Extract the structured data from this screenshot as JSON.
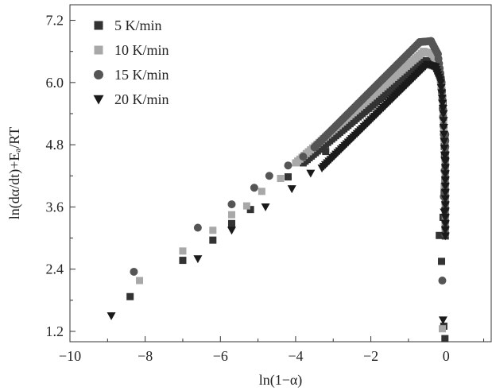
{
  "chart_data": {
    "type": "scatter",
    "title": "",
    "xlabel": "ln(1−α)",
    "ylabel": "ln(dα/dt)+Eₐ/RT",
    "xlim": [
      -10,
      1.2
    ],
    "ylim": [
      1.0,
      7.5
    ],
    "x_ticks": [
      -10,
      -8,
      -6,
      -4,
      -2,
      0
    ],
    "x_tick_labels": [
      "−10",
      "−8",
      "−6",
      "−4",
      "−2",
      "0"
    ],
    "y_ticks": [
      1.2,
      2.4,
      3.6,
      4.8,
      6.0,
      7.2
    ],
    "y_tick_labels": [
      "1.2",
      "2.4",
      "3.6",
      "4.8",
      "6.0",
      "7.2"
    ],
    "grid": false,
    "legend_position": "top-left",
    "series": [
      {
        "name": "5 K/min",
        "marker": "square",
        "color": "#333333",
        "scatter_points": [
          [
            -8.4,
            1.87
          ],
          [
            -7.0,
            2.57
          ],
          [
            -6.2,
            2.96
          ],
          [
            -5.7,
            3.28
          ],
          [
            -5.2,
            3.55
          ],
          [
            -4.2,
            4.18
          ],
          [
            -3.2,
            4.67
          ],
          [
            -0.18,
            3.05
          ],
          [
            -0.12,
            2.55
          ],
          [
            -0.06,
            1.3
          ],
          [
            -0.03,
            1.06
          ],
          [
            -0.08,
            3.4
          ],
          [
            -0.05,
            3.9
          ],
          [
            -0.03,
            4.1
          ]
        ],
        "dense_x": [
          -3.8,
          -0.55
        ],
        "dense_y": [
          4.45,
          6.42
        ],
        "tail": [
          [
            -0.55,
            6.42
          ],
          [
            -0.3,
            6.35
          ],
          [
            -0.15,
            6.1
          ],
          [
            -0.08,
            5.6
          ],
          [
            -0.04,
            4.6
          ]
        ]
      },
      {
        "name": "10 K/min",
        "marker": "square",
        "color": "#a8a8a8",
        "scatter_points": [
          [
            -8.15,
            2.18
          ],
          [
            -7.0,
            2.75
          ],
          [
            -6.2,
            3.15
          ],
          [
            -5.7,
            3.45
          ],
          [
            -5.3,
            3.62
          ],
          [
            -4.9,
            3.9
          ],
          [
            -4.4,
            4.15
          ],
          [
            -0.1,
            1.25
          ],
          [
            -0.05,
            4.0
          ]
        ],
        "dense_x": [
          -4.0,
          -0.6
        ],
        "dense_y": [
          4.45,
          6.6
        ],
        "tail": [
          [
            -0.6,
            6.6
          ],
          [
            -0.35,
            6.55
          ],
          [
            -0.2,
            6.3
          ],
          [
            -0.1,
            5.8
          ],
          [
            -0.05,
            4.9
          ]
        ]
      },
      {
        "name": "15 K/min",
        "marker": "circle",
        "color": "#555555",
        "scatter_points": [
          [
            -8.3,
            2.35
          ],
          [
            -6.6,
            3.2
          ],
          [
            -5.7,
            3.65
          ],
          [
            -5.1,
            3.97
          ],
          [
            -4.7,
            4.2
          ],
          [
            -4.2,
            4.4
          ],
          [
            -3.8,
            4.57
          ],
          [
            -0.1,
            2.18
          ],
          [
            -0.06,
            3.8
          ],
          [
            -0.04,
            4.3
          ]
        ],
        "dense_x": [
          -3.5,
          -0.7
        ],
        "dense_y": [
          4.75,
          6.78
        ],
        "tail": [
          [
            -0.7,
            6.78
          ],
          [
            -0.4,
            6.8
          ],
          [
            -0.22,
            6.55
          ],
          [
            -0.12,
            6.0
          ],
          [
            -0.06,
            5.0
          ]
        ]
      },
      {
        "name": "20 K/min",
        "marker": "triangle-down",
        "color": "#1a1a1a",
        "scatter_points": [
          [
            -8.9,
            1.5
          ],
          [
            -6.6,
            2.6
          ],
          [
            -5.7,
            3.15
          ],
          [
            -4.8,
            3.6
          ],
          [
            -4.1,
            3.95
          ],
          [
            -3.6,
            4.25
          ],
          [
            -0.08,
            1.42
          ],
          [
            -0.05,
            3.5
          ],
          [
            -0.03,
            4.5
          ]
        ],
        "dense_x": [
          -3.3,
          -0.5
        ],
        "dense_y": [
          4.35,
          6.35
        ],
        "tail": [
          [
            -0.5,
            6.35
          ],
          [
            -0.28,
            6.3
          ],
          [
            -0.14,
            6.0
          ],
          [
            -0.07,
            5.4
          ],
          [
            -0.04,
            4.6
          ]
        ]
      }
    ]
  }
}
